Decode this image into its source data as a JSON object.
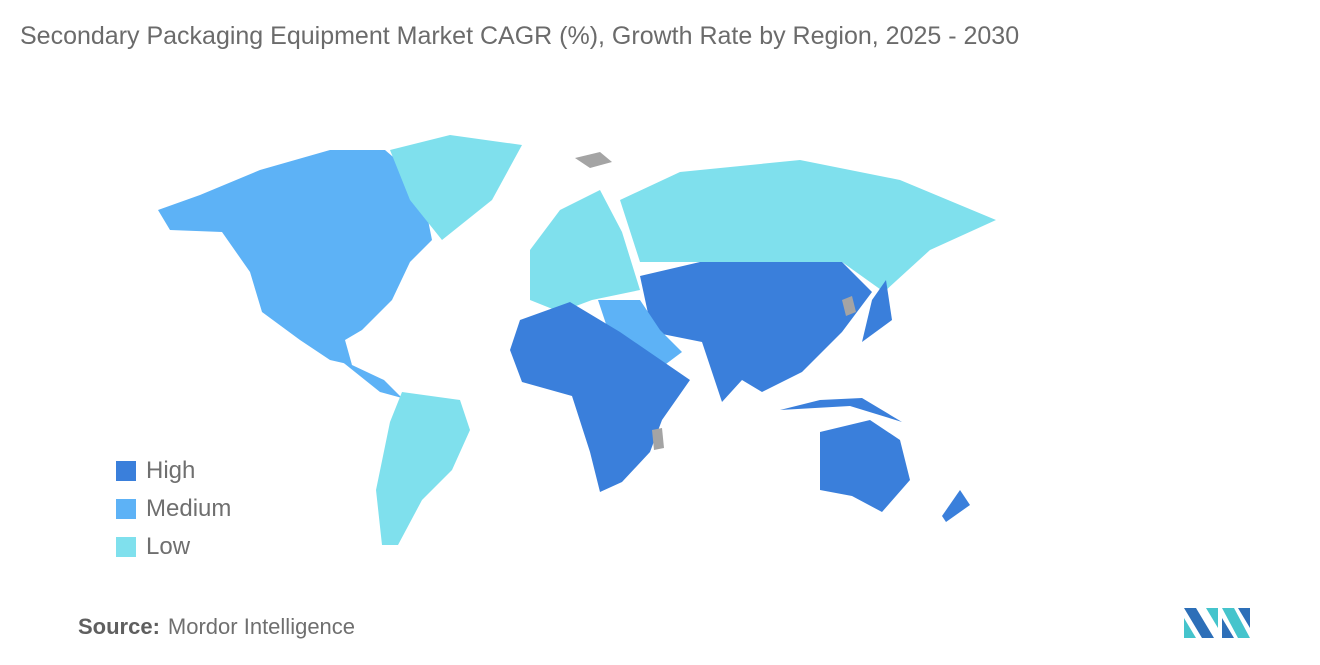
{
  "title": "Secondary Packaging Equipment Market CAGR (%), Growth Rate by Region, 2025 - 2030",
  "legend": [
    {
      "label": "High",
      "color": "#3a7fdb"
    },
    {
      "label": "Medium",
      "color": "#5db2f6"
    },
    {
      "label": "Low",
      "color": "#7fe0ed"
    }
  ],
  "no_data_color": "#a4a4a4",
  "regions": {
    "North America": "Medium",
    "Middle East": "Medium",
    "South America": "Low",
    "Europe": "Low",
    "Russia": "Low",
    "Greenland": "Low",
    "Asia-Pacific": "High",
    "Africa": "High"
  },
  "source": {
    "label": "Source:",
    "value": "Mordor Intelligence"
  }
}
